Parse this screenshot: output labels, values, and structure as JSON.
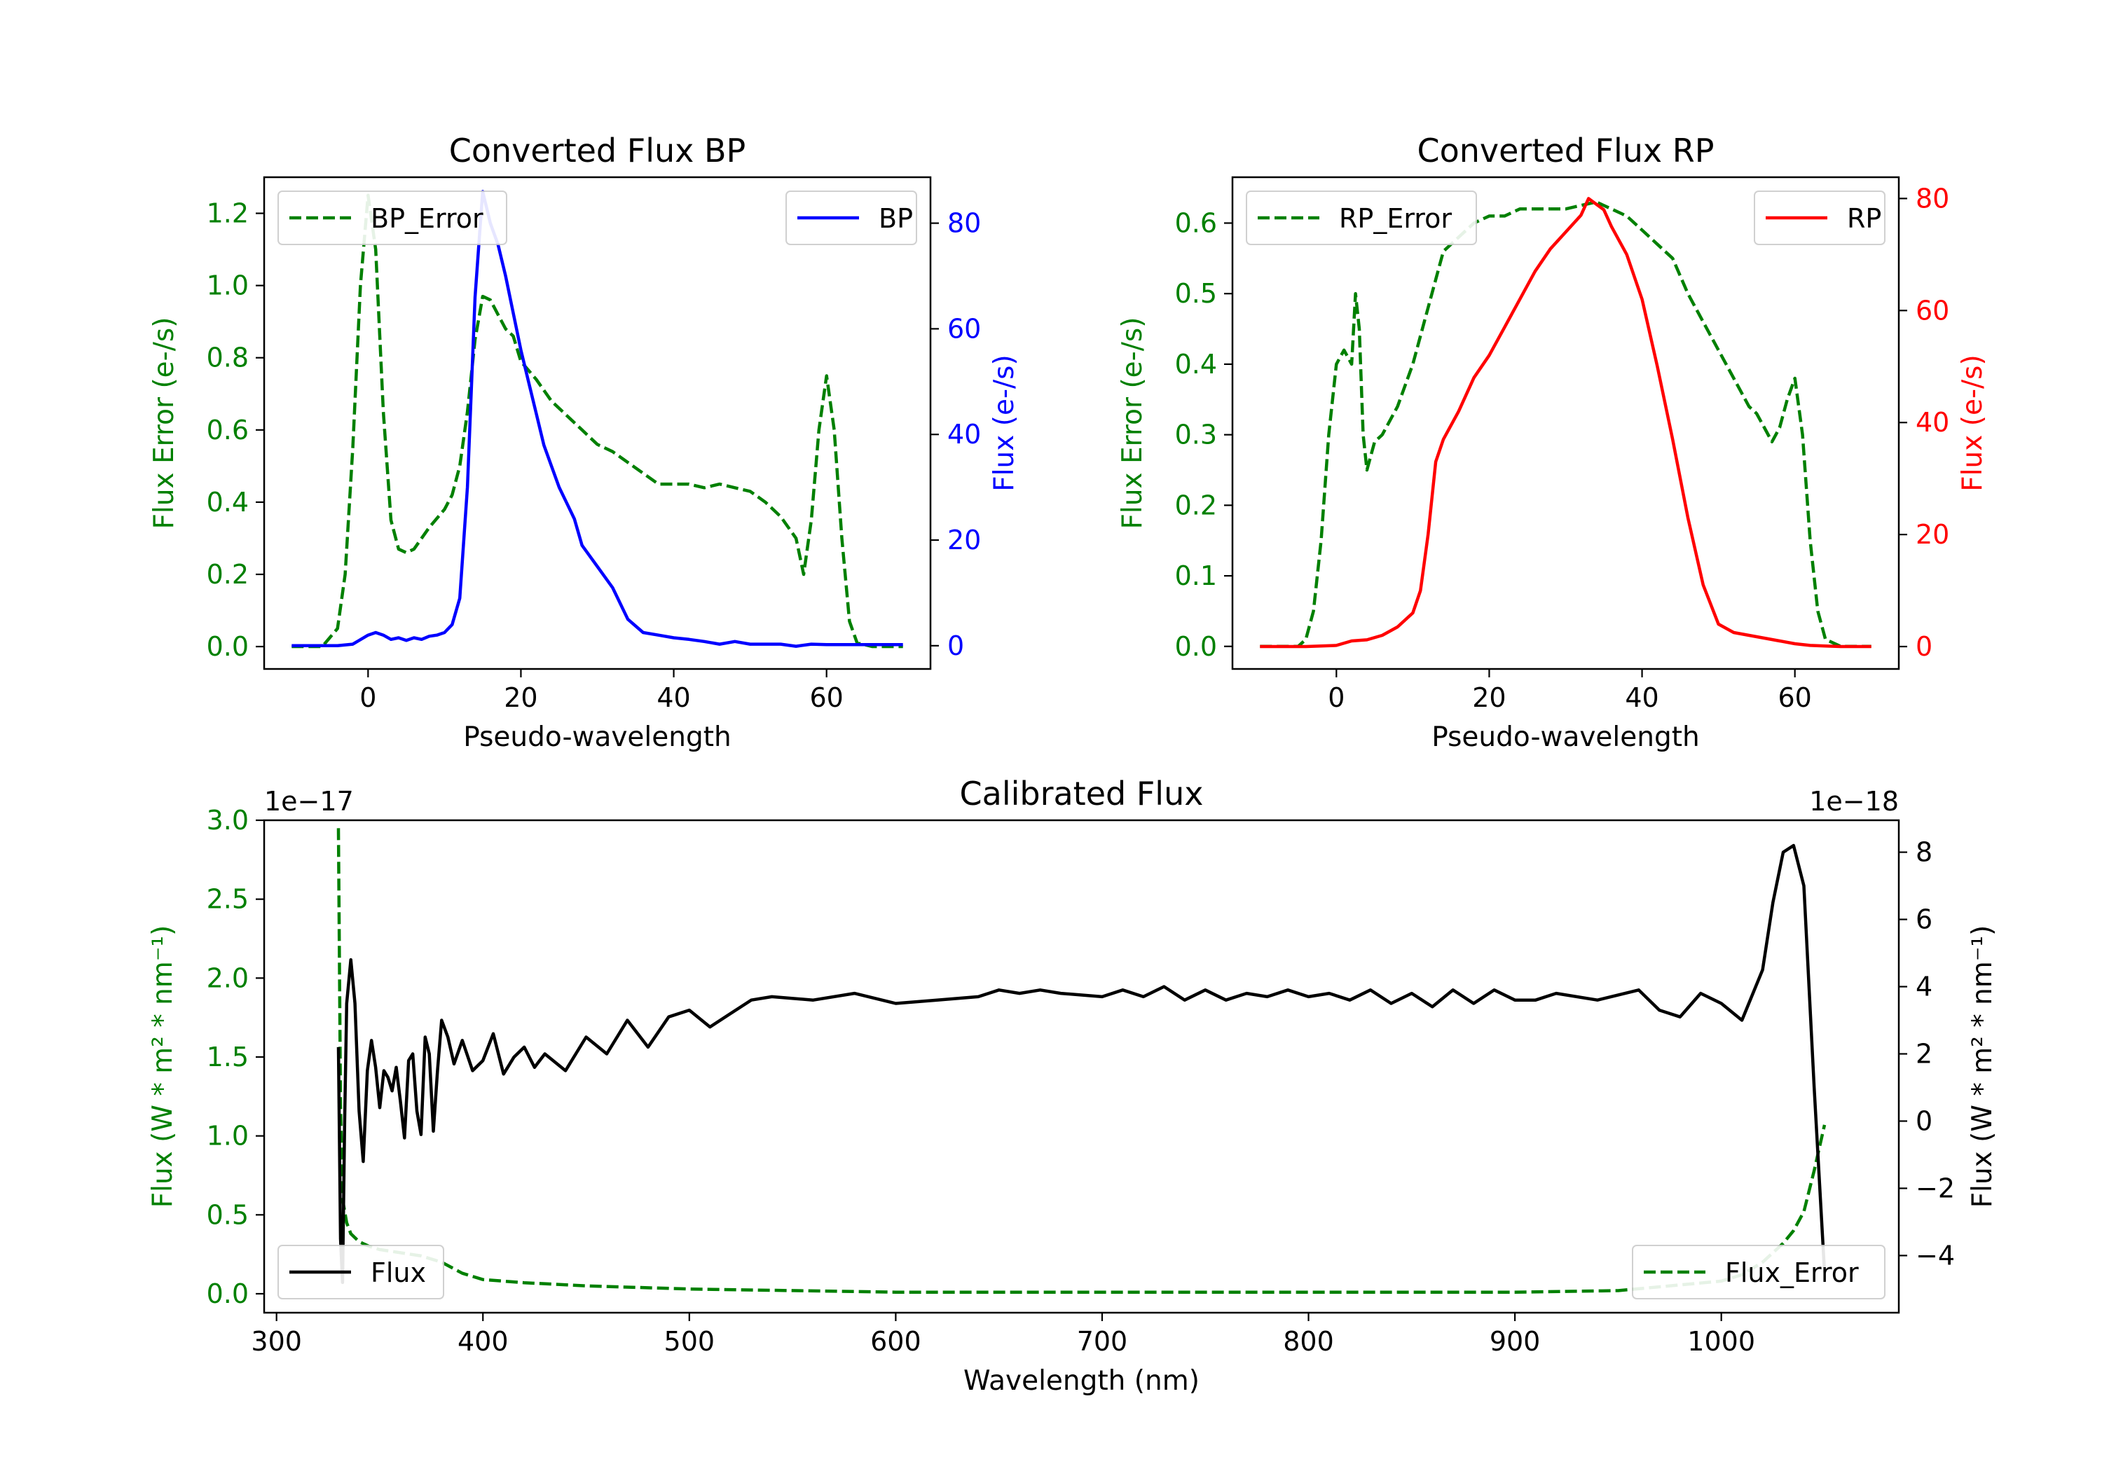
{
  "chart_data": [
    {
      "id": "bp",
      "type": "line",
      "title": "Converted Flux BP",
      "xlabel": "Pseudo-wavelength",
      "ylabel_left": "Flux Error (e-/s)",
      "ylabel_right": "Flux (e-/s)",
      "left_color": "#008000",
      "right_color": "#0000ff",
      "xlim": [
        -13.6,
        73.6
      ],
      "xticks": [
        0,
        20,
        40,
        60
      ],
      "ylim_left": [
        -0.062,
        1.3
      ],
      "yticks_left": [
        0.0,
        0.2,
        0.4,
        0.6,
        0.8,
        1.0,
        1.2
      ],
      "ylim_right": [
        -4.4,
        88.7
      ],
      "yticks_right": [
        0,
        20,
        40,
        60,
        80
      ],
      "legend_left": "BP_Error",
      "legend_right": "BP",
      "error_series": {
        "name": "BP_Error",
        "x": [
          -10,
          -6,
          -4,
          -3,
          -2,
          -1,
          0,
          1,
          2,
          3,
          4,
          5,
          6,
          8,
          10,
          11,
          12,
          13,
          14,
          15,
          16,
          17,
          18,
          19,
          20,
          22,
          24,
          26,
          28,
          30,
          32,
          34,
          36,
          38,
          40,
          42,
          44,
          46,
          48,
          50,
          52,
          54,
          56,
          57,
          58,
          59,
          60,
          61,
          62,
          63,
          64,
          66,
          68,
          70
        ],
        "y": [
          0.0,
          0.0,
          0.05,
          0.2,
          0.55,
          1.0,
          1.25,
          1.1,
          0.65,
          0.35,
          0.27,
          0.26,
          0.27,
          0.33,
          0.38,
          0.42,
          0.5,
          0.65,
          0.85,
          0.97,
          0.96,
          0.92,
          0.88,
          0.86,
          0.79,
          0.74,
          0.68,
          0.64,
          0.6,
          0.56,
          0.54,
          0.51,
          0.48,
          0.45,
          0.45,
          0.45,
          0.44,
          0.45,
          0.44,
          0.43,
          0.4,
          0.36,
          0.3,
          0.2,
          0.35,
          0.6,
          0.75,
          0.6,
          0.3,
          0.07,
          0.01,
          0.0,
          0.0,
          0.0
        ]
      },
      "flux_series": {
        "name": "BP",
        "x": [
          -10,
          -6,
          -4,
          -2,
          0,
          1,
          2,
          3,
          4,
          5,
          6,
          7,
          8,
          9,
          10,
          11,
          12,
          13,
          14,
          15,
          16,
          17,
          18,
          19,
          20,
          21,
          22,
          23,
          24,
          25,
          26,
          27,
          28,
          30,
          32,
          34,
          36,
          38,
          40,
          42,
          44,
          46,
          48,
          50,
          52,
          54,
          56,
          58,
          60,
          62,
          64,
          66,
          68,
          70
        ],
        "y": [
          0,
          0,
          0,
          0.3,
          2,
          2.5,
          2,
          1.2,
          1.5,
          1.0,
          1.5,
          1.2,
          1.8,
          2.0,
          2.5,
          4,
          9,
          30,
          66,
          86,
          80,
          76,
          70,
          63,
          56,
          50,
          44,
          38,
          34,
          30,
          27,
          24,
          19,
          15,
          11,
          5,
          2.5,
          2,
          1.5,
          1.2,
          0.8,
          0.3,
          0.8,
          0.3,
          0.3,
          0.3,
          -0.1,
          0.3,
          0.2,
          0.2,
          0.2,
          0.2,
          0.2,
          0.2
        ]
      }
    },
    {
      "id": "rp",
      "type": "line",
      "title": "Converted Flux RP",
      "xlabel": "Pseudo-wavelength",
      "ylabel_left": "Flux Error (e-/s)",
      "ylabel_right": "Flux (e-/s)",
      "left_color": "#008000",
      "right_color": "#ff0000",
      "xlim": [
        -13.6,
        73.6
      ],
      "xticks": [
        0,
        20,
        40,
        60
      ],
      "ylim_left": [
        -0.032,
        0.665
      ],
      "yticks_left": [
        0.0,
        0.1,
        0.2,
        0.3,
        0.4,
        0.5,
        0.6
      ],
      "ylim_right": [
        -4.0,
        83.8
      ],
      "yticks_right": [
        0,
        20,
        40,
        60,
        80
      ],
      "legend_left": "RP_Error",
      "legend_right": "RP",
      "error_series": {
        "name": "RP_Error",
        "x": [
          -10,
          -5,
          -4,
          -3,
          -2,
          -1,
          0,
          1,
          2,
          2.5,
          3,
          3.5,
          4,
          5,
          6,
          8,
          10,
          12,
          14,
          16,
          18,
          20,
          22,
          24,
          26,
          28,
          30,
          32,
          34,
          36,
          38,
          40,
          42,
          44,
          46,
          48,
          50,
          52,
          54,
          55,
          56,
          57,
          58,
          59,
          60,
          61,
          62,
          63,
          64,
          66,
          70
        ],
        "y": [
          0.0,
          0.0,
          0.01,
          0.05,
          0.15,
          0.3,
          0.4,
          0.42,
          0.4,
          0.5,
          0.45,
          0.3,
          0.25,
          0.29,
          0.3,
          0.34,
          0.4,
          0.48,
          0.56,
          0.58,
          0.6,
          0.61,
          0.61,
          0.62,
          0.62,
          0.62,
          0.62,
          0.625,
          0.63,
          0.62,
          0.61,
          0.59,
          0.57,
          0.55,
          0.5,
          0.46,
          0.42,
          0.38,
          0.34,
          0.33,
          0.31,
          0.29,
          0.31,
          0.35,
          0.38,
          0.3,
          0.15,
          0.05,
          0.01,
          0.0,
          0.0
        ]
      },
      "flux_series": {
        "name": "RP",
        "x": [
          -10,
          -4,
          0,
          2,
          4,
          6,
          8,
          10,
          11,
          12,
          13,
          14,
          16,
          18,
          20,
          22,
          24,
          26,
          28,
          30,
          32,
          33,
          34,
          35,
          36,
          38,
          40,
          42,
          44,
          46,
          48,
          50,
          52,
          54,
          56,
          58,
          60,
          62,
          64,
          66,
          70
        ],
        "y": [
          0,
          0,
          0.2,
          1,
          1.2,
          2,
          3.5,
          6,
          10,
          20,
          33,
          37,
          42,
          48,
          52,
          57,
          62,
          67,
          71,
          74,
          77,
          80,
          79,
          78,
          75,
          70,
          62,
          50,
          37,
          23,
          11,
          4,
          2.5,
          2,
          1.5,
          1.0,
          0.5,
          0.2,
          0.1,
          0,
          0
        ]
      }
    },
    {
      "id": "cal",
      "type": "line",
      "title": "Calibrated Flux",
      "xlabel": "Wavelength (nm)",
      "ylabel_left": "Flux (W * m² * nm⁻¹)",
      "ylabel_right": "Flux (W * m² * nm⁻¹)",
      "left_color": "#008000",
      "right_color": "#000000",
      "offset_left": "1e−17",
      "offset_right": "1e−18",
      "xlim": [
        294,
        1086
      ],
      "xticks": [
        300,
        400,
        500,
        600,
        700,
        800,
        900,
        1000
      ],
      "ylim_left": [
        -0.12,
        3.0
      ],
      "yticks_left": [
        0.0,
        0.5,
        1.0,
        1.5,
        2.0,
        2.5,
        3.0
      ],
      "ylim_right": [
        -5.7,
        8.95
      ],
      "yticks_right": [
        -4,
        -2,
        0,
        2,
        4,
        6,
        8
      ],
      "legend_left": "Flux",
      "legend_right": "Flux_Error",
      "error_series": {
        "name": "Flux_Error",
        "x": [
          330,
          331,
          332,
          334,
          336,
          340,
          345,
          350,
          360,
          370,
          380,
          390,
          400,
          420,
          450,
          500,
          600,
          700,
          800,
          900,
          950,
          1000,
          1010,
          1020,
          1030,
          1035,
          1040,
          1045,
          1050
        ],
        "y": [
          2.95,
          1.2,
          0.6,
          0.45,
          0.38,
          0.33,
          0.3,
          0.28,
          0.26,
          0.24,
          0.2,
          0.13,
          0.09,
          0.07,
          0.05,
          0.03,
          0.01,
          0.01,
          0.01,
          0.01,
          0.02,
          0.08,
          0.12,
          0.2,
          0.32,
          0.4,
          0.52,
          0.78,
          1.07
        ]
      },
      "flux_series": {
        "name": "Flux",
        "x": [
          330,
          331,
          332,
          333,
          334,
          336,
          338,
          340,
          342,
          344,
          346,
          348,
          350,
          352,
          354,
          356,
          358,
          360,
          362,
          364,
          366,
          368,
          370,
          372,
          374,
          376,
          378,
          380,
          383,
          386,
          390,
          395,
          400,
          405,
          410,
          415,
          420,
          425,
          430,
          440,
          450,
          460,
          470,
          480,
          490,
          500,
          510,
          520,
          530,
          540,
          560,
          580,
          600,
          620,
          640,
          645,
          650,
          660,
          670,
          680,
          700,
          710,
          720,
          730,
          740,
          750,
          760,
          770,
          780,
          790,
          800,
          810,
          820,
          830,
          840,
          850,
          860,
          870,
          880,
          890,
          900,
          910,
          920,
          940,
          960,
          970,
          980,
          990,
          1000,
          1010,
          1020,
          1025,
          1030,
          1035,
          1040,
          1045,
          1050
        ],
        "y": [
          2.2,
          -3.5,
          -4.8,
          0,
          3.5,
          4.8,
          3.5,
          0.3,
          -1.2,
          1.5,
          2.4,
          1.6,
          0.4,
          1.5,
          1.3,
          0.9,
          1.6,
          0.6,
          -0.5,
          1.8,
          2.0,
          0.3,
          -0.4,
          2.5,
          2.0,
          -0.3,
          1.5,
          3.0,
          2.5,
          1.7,
          2.4,
          1.5,
          1.8,
          2.6,
          1.4,
          1.9,
          2.2,
          1.6,
          2.0,
          1.5,
          2.5,
          2.0,
          3.0,
          2.2,
          3.1,
          3.3,
          2.8,
          3.2,
          3.6,
          3.7,
          3.6,
          3.8,
          3.5,
          3.6,
          3.7,
          3.8,
          3.9,
          3.8,
          3.9,
          3.8,
          3.7,
          3.9,
          3.7,
          4.0,
          3.6,
          3.9,
          3.6,
          3.8,
          3.7,
          3.9,
          3.7,
          3.8,
          3.6,
          3.9,
          3.5,
          3.8,
          3.4,
          3.9,
          3.5,
          3.9,
          3.6,
          3.6,
          3.8,
          3.6,
          3.9,
          3.3,
          3.1,
          3.8,
          3.5,
          3.0,
          4.5,
          6.5,
          8.0,
          8.2,
          7.0,
          1.0,
          -4.5
        ]
      }
    }
  ]
}
